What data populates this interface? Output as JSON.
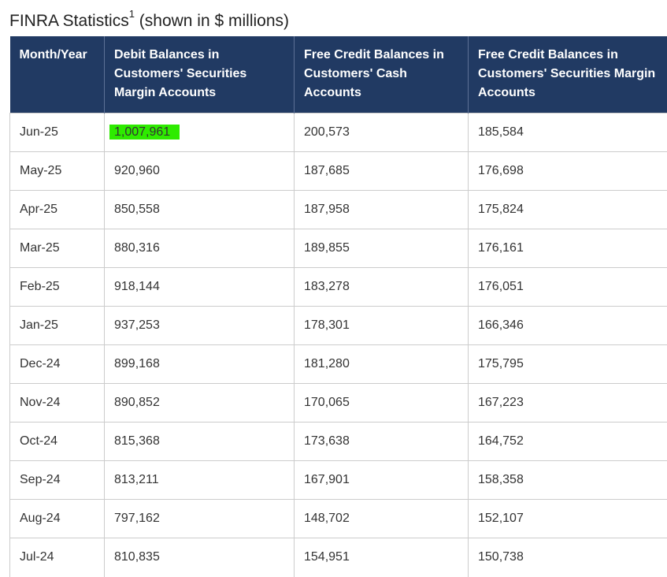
{
  "title": {
    "main": "FINRA Statistics",
    "footnote": "1",
    "suffix": "(shown in $ millions)"
  },
  "colors": {
    "header_bg": "#213a63",
    "highlight": "#2eeb00"
  },
  "table": {
    "headers": [
      "Month/Year",
      "Debit Balances in Customers' Securities Margin Accounts",
      "Free Credit Balances in Customers' Cash Accounts",
      "Free Credit Balances in Customers' Securities Margin Accounts"
    ],
    "rows": [
      [
        "Jun-25",
        "1,007,961",
        "200,573",
        "185,584"
      ],
      [
        "May-25",
        "920,960",
        "187,685",
        "176,698"
      ],
      [
        "Apr-25",
        "850,558",
        "187,958",
        "175,824"
      ],
      [
        "Mar-25",
        "880,316",
        "189,855",
        "176,161"
      ],
      [
        "Feb-25",
        "918,144",
        "183,278",
        "176,051"
      ],
      [
        "Jan-25",
        "937,253",
        "178,301",
        "166,346"
      ],
      [
        "Dec-24",
        "899,168",
        "181,280",
        "175,795"
      ],
      [
        "Nov-24",
        "890,852",
        "170,065",
        "167,223"
      ],
      [
        "Oct-24",
        "815,368",
        "173,638",
        "164,752"
      ],
      [
        "Sep-24",
        "813,211",
        "167,901",
        "158,358"
      ],
      [
        "Aug-24",
        "797,162",
        "148,702",
        "152,107"
      ],
      [
        "Jul-24",
        "810,835",
        "154,951",
        "150,738"
      ]
    ]
  }
}
